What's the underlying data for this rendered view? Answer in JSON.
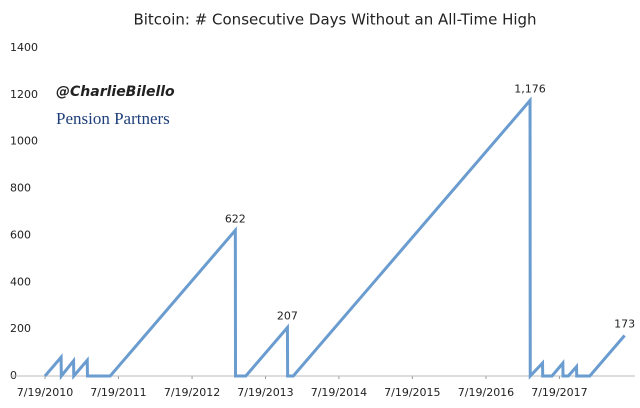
{
  "chart_data": {
    "type": "line",
    "title": "Bitcoin: # Consecutive Days Without an All-Time High",
    "watermark": [
      "@CharlieBilello",
      "Pension Partners"
    ],
    "x": [
      "2010-07-19",
      "2010-10-07",
      "2010-10-08",
      "2010-12-08",
      "2010-12-09",
      "2011-02-14",
      "2011-02-15",
      "2011-06-08",
      "2013-02-19",
      "2013-02-20",
      "2013-04-12",
      "2013-11-05",
      "2013-11-06",
      "2013-12-04",
      "2017-02-23",
      "2017-02-24",
      "2017-04-26",
      "2017-04-27",
      "2017-06-12",
      "2017-08-05",
      "2017-08-06",
      "2017-09-01",
      "2017-10-12",
      "2017-10-13",
      "2017-12-17",
      "2018-06-08"
    ],
    "values": [
      0,
      80,
      0,
      65,
      0,
      67,
      0,
      0,
      622,
      0,
      0,
      207,
      0,
      0,
      1176,
      0,
      55,
      0,
      0,
      55,
      0,
      0,
      40,
      0,
      0,
      173
    ],
    "value_labels": [
      null,
      null,
      null,
      null,
      null,
      null,
      null,
      null,
      "622",
      null,
      null,
      "207",
      null,
      null,
      "1,176",
      null,
      null,
      null,
      null,
      null,
      null,
      null,
      null,
      null,
      null,
      "173"
    ],
    "color": "#6a9ccf",
    "xlim": [
      "2010-07-19",
      "2018-06-10"
    ],
    "xticks": [
      {
        "value": "2010-07-19",
        "label": "7/19/2010"
      },
      {
        "value": "2011-07-19",
        "label": "7/19/2011"
      },
      {
        "value": "2012-07-19",
        "label": "7/19/2012"
      },
      {
        "value": "2013-07-19",
        "label": "7/19/2013"
      },
      {
        "value": "2014-07-19",
        "label": "7/19/2014"
      },
      {
        "value": "2015-07-19",
        "label": "7/19/2015"
      },
      {
        "value": "2016-07-19",
        "label": "7/19/2016"
      },
      {
        "value": "2017-07-19",
        "label": "7/19/2017"
      }
    ],
    "ylim": [
      0,
      1400
    ],
    "yticks": [
      0,
      200,
      400,
      600,
      800,
      1000,
      1200,
      1400
    ],
    "grid": false
  }
}
